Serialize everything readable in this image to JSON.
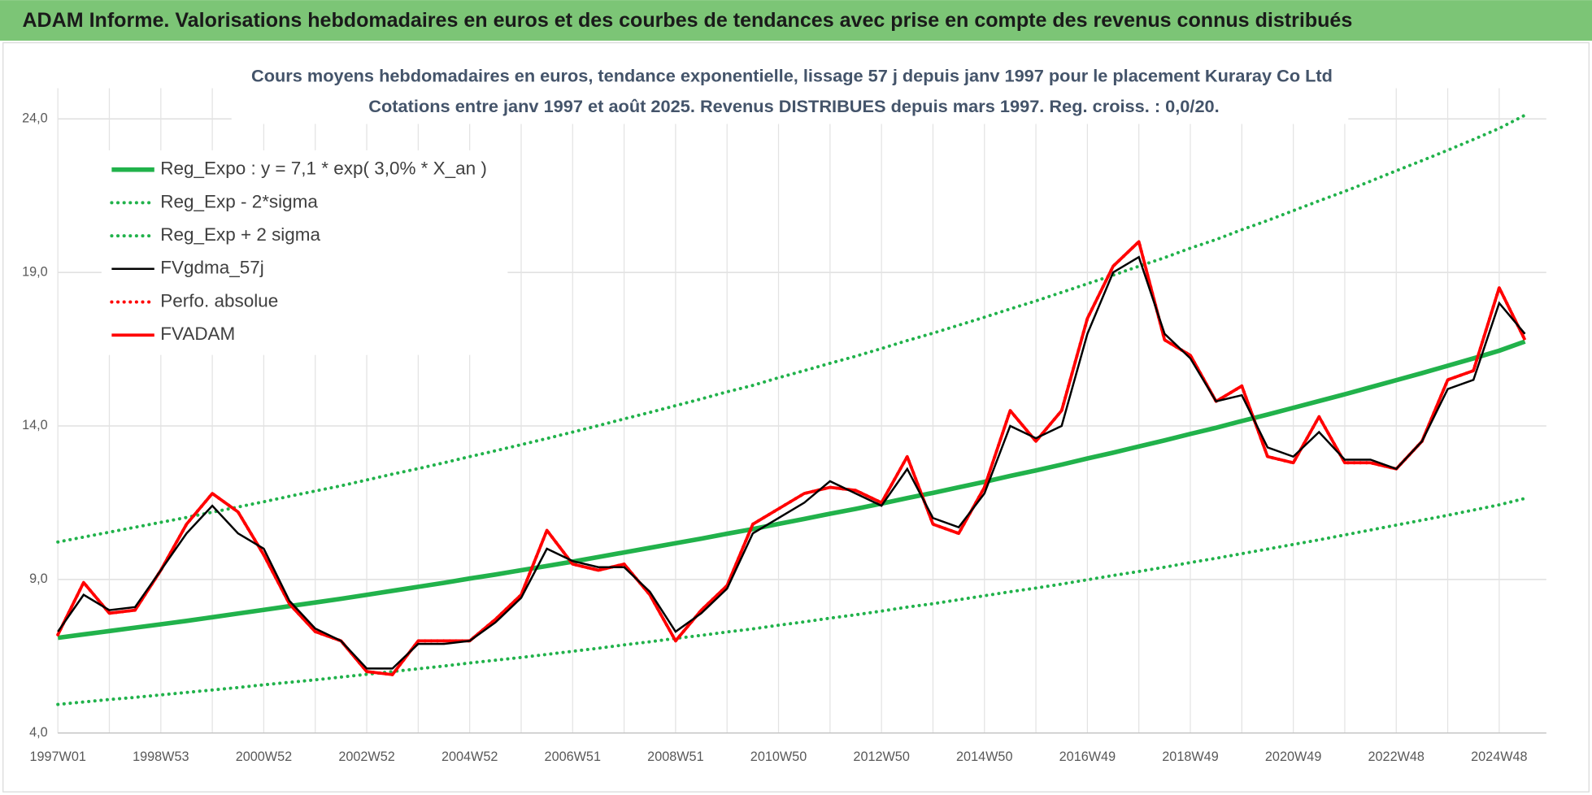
{
  "header": {
    "title": "ADAM Informe. Valorisations hebdomadaires en euros et des courbes de tendances avec prise en compte des revenus connus distribués"
  },
  "chart_data": {
    "type": "line",
    "title": "Cours moyens hebdomadaires en euros, tendance exponentielle, lissage 57 j depuis janv 1997 pour le placement Kuraray Co Ltd",
    "subtitle": "Cotations entre janv 1997 et août 2025.  Revenus DISTRIBUES depuis mars 1997. Reg. croiss. : 0,0/20.",
    "categories": [
      "1997W01",
      null,
      null,
      null,
      "1998W53",
      null,
      null,
      null,
      "2000W52",
      null,
      null,
      null,
      "2002W52",
      null,
      null,
      null,
      "2004W52",
      null,
      null,
      null,
      "2006W51",
      null,
      null,
      null,
      "2008W51",
      null,
      null,
      null,
      "2010W50",
      null,
      null,
      null,
      "2012W50",
      null,
      null,
      null,
      "2014W50",
      null,
      null,
      null,
      "2016W49",
      null,
      null,
      null,
      "2018W49",
      null,
      null,
      null,
      "2020W49",
      null,
      null,
      null,
      "2022W48",
      null,
      null,
      null,
      "2024W48",
      null
    ],
    "ylim": [
      4,
      25
    ],
    "yticks": [
      {
        "value": 4,
        "label": "4,0"
      },
      {
        "value": 9,
        "label": "9,0"
      },
      {
        "value": 14,
        "label": "14,0"
      },
      {
        "value": 19,
        "label": "19,0"
      },
      {
        "value": 24,
        "label": "24,0"
      }
    ],
    "grid": true,
    "legend": "top-left",
    "series": [
      {
        "name": "Reg_Expo : y = 7,1 * exp( 3,0% *  X_an )",
        "color": "#21b24b",
        "style": "solid",
        "values": [
          7.1,
          7.21,
          7.32,
          7.43,
          7.54,
          7.65,
          7.77,
          7.89,
          8.01,
          8.13,
          8.25,
          8.37,
          8.5,
          8.63,
          8.76,
          8.89,
          9.03,
          9.16,
          9.3,
          9.44,
          9.58,
          9.73,
          9.88,
          10.03,
          10.18,
          10.33,
          10.49,
          10.64,
          10.81,
          10.97,
          11.14,
          11.3,
          11.47,
          11.65,
          11.82,
          12.0,
          12.18,
          12.37,
          12.55,
          12.74,
          12.94,
          13.13,
          13.33,
          13.53,
          13.74,
          13.94,
          14.16,
          14.37,
          14.59,
          14.81,
          15.03,
          15.26,
          15.49,
          15.72,
          15.96,
          16.2,
          16.45,
          16.75
        ]
      },
      {
        "name": "Reg_Exp - 2*sigma",
        "color": "#21b24b",
        "style": "dotted",
        "values": [
          4.93,
          5.01,
          5.09,
          5.16,
          5.24,
          5.32,
          5.4,
          5.48,
          5.57,
          5.65,
          5.73,
          5.82,
          5.91,
          6.0,
          6.09,
          6.18,
          6.28,
          6.37,
          6.46,
          6.56,
          6.66,
          6.76,
          6.87,
          6.97,
          7.08,
          7.18,
          7.29,
          7.39,
          7.51,
          7.62,
          7.74,
          7.85,
          7.97,
          8.1,
          8.21,
          8.34,
          8.47,
          8.6,
          8.72,
          8.85,
          8.99,
          9.13,
          9.26,
          9.4,
          9.55,
          9.69,
          9.84,
          9.99,
          10.14,
          10.29,
          10.45,
          10.61,
          10.77,
          10.93,
          11.09,
          11.26,
          11.43,
          11.64
        ]
      },
      {
        "name": "Reg_Exp + 2 sigma",
        "color": "#21b24b",
        "style": "dotted",
        "values": [
          10.22,
          10.38,
          10.54,
          10.7,
          10.86,
          11.02,
          11.19,
          11.36,
          11.53,
          11.71,
          11.88,
          12.05,
          12.24,
          12.43,
          12.61,
          12.8,
          13.0,
          13.19,
          13.39,
          13.59,
          13.8,
          14.01,
          14.23,
          14.44,
          14.66,
          14.88,
          15.11,
          15.32,
          15.57,
          15.8,
          16.04,
          16.27,
          16.52,
          16.78,
          17.02,
          17.28,
          17.54,
          17.81,
          18.07,
          18.35,
          18.63,
          18.91,
          19.2,
          19.48,
          19.79,
          20.07,
          20.39,
          20.69,
          21.01,
          21.33,
          21.64,
          21.97,
          22.31,
          22.64,
          22.98,
          23.33,
          23.69,
          24.12
        ]
      },
      {
        "name": "FVgdma_57j",
        "color": "#000000",
        "style": "solid",
        "values": [
          7.3,
          8.5,
          8.0,
          8.1,
          9.3,
          10.5,
          11.4,
          10.5,
          10.0,
          8.3,
          7.4,
          7.0,
          6.1,
          6.1,
          6.9,
          6.9,
          7.0,
          7.6,
          8.4,
          10.0,
          9.6,
          9.4,
          9.4,
          8.6,
          7.3,
          7.9,
          8.7,
          10.5,
          11.0,
          11.5,
          12.2,
          11.8,
          11.4,
          12.6,
          11.0,
          10.7,
          11.8,
          14.0,
          13.6,
          14.0,
          17.0,
          19.0,
          19.5,
          17.0,
          16.2,
          14.8,
          15.0,
          13.3,
          13.0,
          13.8,
          12.9,
          12.9,
          12.6,
          13.5,
          15.2,
          15.5,
          18.0,
          17.0
        ]
      },
      {
        "name": "Perfo. absolue",
        "color": "#ff0000",
        "style": "dotted",
        "values": [
          7.2,
          8.9,
          7.9,
          8.0,
          9.3,
          10.8,
          11.8,
          11.2,
          9.8,
          8.2,
          7.3,
          7.0,
          6.0,
          5.9,
          7.0,
          7.0,
          7.0,
          7.7,
          8.5,
          10.6,
          9.5,
          9.3,
          9.5,
          8.5,
          7.0,
          8.0,
          8.8,
          10.8,
          11.3,
          11.8,
          12.0,
          11.9,
          11.5,
          13.0,
          10.8,
          10.5,
          12.0,
          14.5,
          13.5,
          14.5,
          17.5,
          19.2,
          20.0,
          16.8,
          16.3,
          14.8,
          15.3,
          13.0,
          12.8,
          14.3,
          12.8,
          12.8,
          12.6,
          13.5,
          15.5,
          15.8,
          18.5,
          16.8
        ]
      },
      {
        "name": "FVADAM",
        "color": "#ff0000",
        "style": "solid",
        "values": [
          7.2,
          8.9,
          7.9,
          8.0,
          9.3,
          10.8,
          11.8,
          11.2,
          9.8,
          8.2,
          7.3,
          7.0,
          6.0,
          5.9,
          7.0,
          7.0,
          7.0,
          7.7,
          8.5,
          10.6,
          9.5,
          9.3,
          9.5,
          8.5,
          7.0,
          8.0,
          8.8,
          10.8,
          11.3,
          11.8,
          12.0,
          11.9,
          11.5,
          13.0,
          10.8,
          10.5,
          12.0,
          14.5,
          13.5,
          14.5,
          17.5,
          19.2,
          20.0,
          16.8,
          16.3,
          14.8,
          15.3,
          13.0,
          12.8,
          14.3,
          12.8,
          12.8,
          12.6,
          13.5,
          15.5,
          15.8,
          18.5,
          16.8
        ]
      }
    ]
  }
}
